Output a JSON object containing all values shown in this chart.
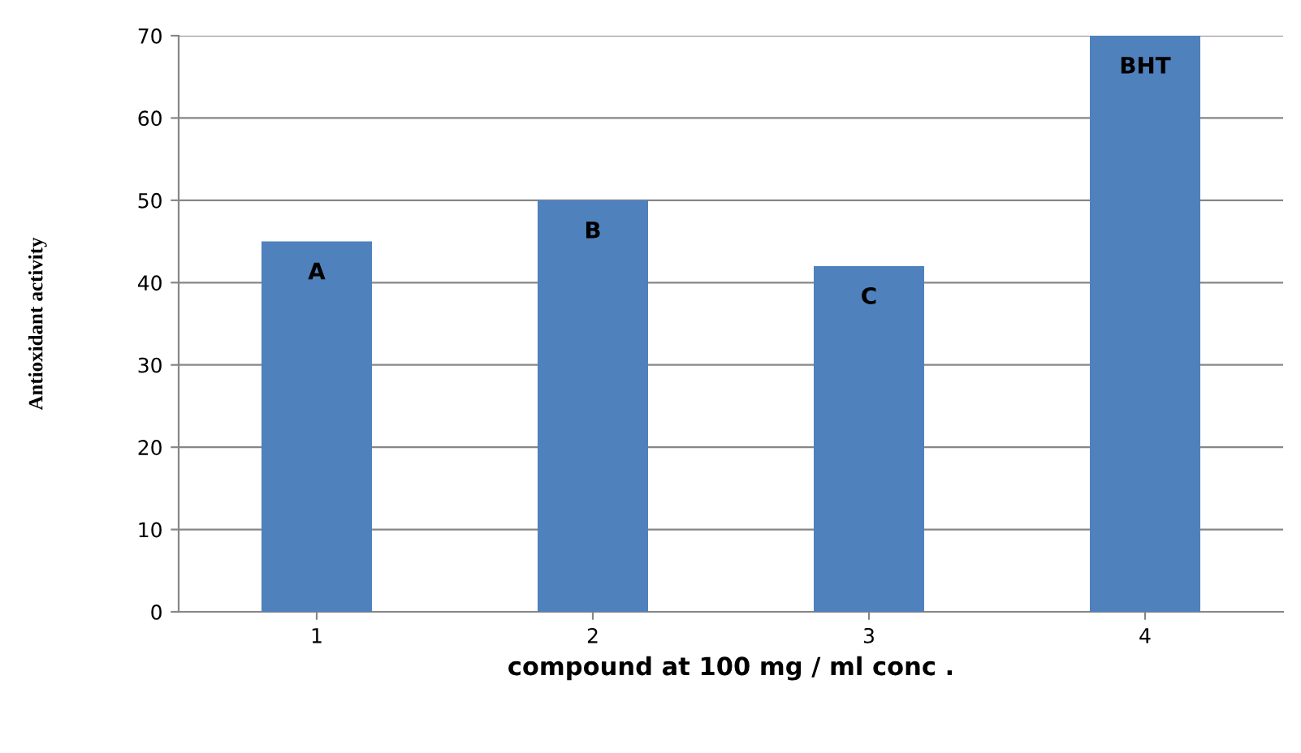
{
  "chart_data": {
    "type": "bar",
    "categories": [
      "1",
      "2",
      "3",
      "4"
    ],
    "values": [
      45,
      50,
      42,
      70
    ],
    "color": "#4f81bd",
    "ylim": [
      0,
      70
    ],
    "yticks": [
      0,
      10,
      20,
      30,
      40,
      50,
      60,
      70
    ],
    "grid": "y",
    "xlabel": "compound at 100 mg / ml conc .",
    "ylabel": "Antioxidant activity",
    "annotations": [
      {
        "text": "A",
        "x": "1",
        "y": 45
      },
      {
        "text": "B",
        "x": "2",
        "y": 50
      },
      {
        "text": "C",
        "x": "3",
        "y": 42
      },
      {
        "text": "BHT",
        "x": "4",
        "y": 70
      }
    ]
  }
}
